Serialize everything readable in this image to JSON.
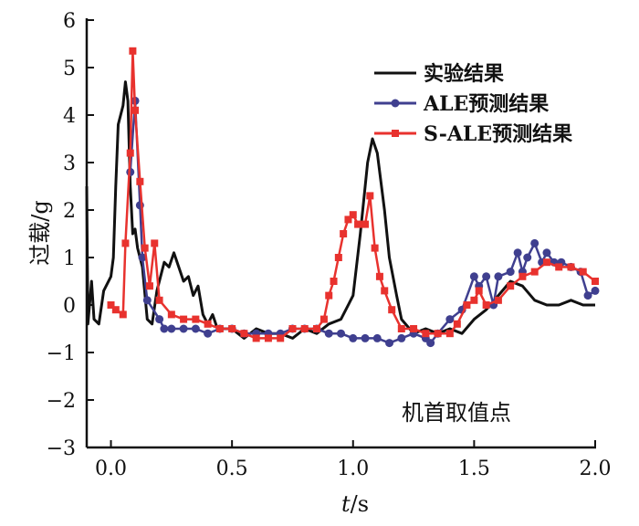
{
  "chart_data": {
    "type": "line",
    "title": "",
    "xlabel": "t/s",
    "xlabel_italic": "t",
    "xlabel_unit": "/s",
    "ylabel": "过载/g",
    "xlim": [
      -0.1,
      2.0
    ],
    "ylim": [
      -3,
      6
    ],
    "xticks": [
      0.0,
      0.5,
      1.0,
      1.5,
      2.0
    ],
    "xtick_labels": [
      "0.0",
      "0.5",
      "1.0",
      "1.5",
      "2.0"
    ],
    "yticks": [
      -3,
      -2,
      -1,
      0,
      1,
      2,
      3,
      4,
      5,
      6
    ],
    "ytick_labels": [
      "−3",
      "−2",
      "−1",
      "0",
      "1",
      "2",
      "3",
      "4",
      "5",
      "6"
    ],
    "grid": false,
    "legend_position": "top-right",
    "annotation": "机首取值点",
    "series": [
      {
        "name": "实验结果",
        "color": "#111111",
        "marker": "none",
        "x": [
          -0.1,
          -0.095,
          -0.08,
          -0.07,
          -0.05,
          -0.03,
          0,
          0.01,
          0.02,
          0.03,
          0.05,
          0.06,
          0.07,
          0.08,
          0.09,
          0.1,
          0.11,
          0.13,
          0.15,
          0.17,
          0.19,
          0.22,
          0.24,
          0.26,
          0.28,
          0.3,
          0.32,
          0.34,
          0.36,
          0.38,
          0.4,
          0.42,
          0.44,
          0.5,
          0.55,
          0.6,
          0.65,
          0.7,
          0.75,
          0.8,
          0.85,
          0.9,
          0.95,
          1.0,
          1.03,
          1.06,
          1.08,
          1.1,
          1.13,
          1.15,
          1.18,
          1.2,
          1.25,
          1.3,
          1.35,
          1.4,
          1.45,
          1.5,
          1.55,
          1.6,
          1.65,
          1.7,
          1.75,
          1.8,
          1.85,
          1.9,
          1.95,
          2.0
        ],
        "y": [
          2.5,
          -0.4,
          0.5,
          -0.3,
          -0.4,
          0.3,
          0.6,
          1.0,
          2.5,
          3.8,
          4.2,
          4.7,
          4.3,
          2.5,
          1.5,
          1.6,
          1.2,
          0.8,
          -0.3,
          -0.4,
          0.3,
          0.9,
          0.8,
          1.1,
          0.8,
          0.5,
          0.6,
          0.2,
          0.4,
          -0.2,
          -0.4,
          -0.2,
          -0.5,
          -0.5,
          -0.7,
          -0.5,
          -0.6,
          -0.6,
          -0.7,
          -0.5,
          -0.6,
          -0.4,
          -0.3,
          0.2,
          1.5,
          3.0,
          3.5,
          3.2,
          2.0,
          1.0,
          0.2,
          -0.3,
          -0.6,
          -0.5,
          -0.6,
          -0.5,
          -0.6,
          -0.3,
          -0.1,
          0.2,
          0.5,
          0.4,
          0.1,
          0.0,
          0.0,
          0.1,
          0.0,
          0.0
        ]
      },
      {
        "name": "ALE预测结果",
        "color": "#3f3f8f",
        "marker": "circle",
        "x": [
          0.08,
          0.1,
          0.12,
          0.13,
          0.15,
          0.2,
          0.22,
          0.25,
          0.3,
          0.35,
          0.4,
          0.45,
          0.5,
          0.55,
          0.6,
          0.65,
          0.7,
          0.75,
          0.8,
          0.85,
          0.9,
          0.95,
          1.0,
          1.05,
          1.1,
          1.15,
          1.2,
          1.25,
          1.3,
          1.32,
          1.35,
          1.4,
          1.45,
          1.5,
          1.52,
          1.55,
          1.58,
          1.6,
          1.65,
          1.68,
          1.7,
          1.72,
          1.75,
          1.78,
          1.8,
          1.83,
          1.86,
          1.9,
          1.94,
          1.97,
          2.0
        ],
        "y": [
          2.8,
          4.3,
          2.1,
          1.0,
          0.1,
          -0.3,
          -0.5,
          -0.5,
          -0.5,
          -0.5,
          -0.6,
          -0.5,
          -0.5,
          -0.6,
          -0.6,
          -0.6,
          -0.6,
          -0.5,
          -0.5,
          -0.5,
          -0.6,
          -0.6,
          -0.7,
          -0.7,
          -0.7,
          -0.8,
          -0.7,
          -0.6,
          -0.7,
          -0.8,
          -0.6,
          -0.3,
          -0.1,
          0.6,
          0.4,
          0.6,
          0.0,
          0.6,
          0.7,
          1.1,
          0.7,
          1.0,
          1.3,
          0.9,
          1.1,
          0.9,
          0.9,
          0.8,
          0.7,
          0.2,
          0.3
        ]
      },
      {
        "name": "S-ALE预测结果",
        "color": "#e8322e",
        "marker": "square",
        "x": [
          0.0,
          0.02,
          0.05,
          0.06,
          0.08,
          0.09,
          0.1,
          0.12,
          0.14,
          0.16,
          0.18,
          0.2,
          0.25,
          0.3,
          0.35,
          0.4,
          0.45,
          0.5,
          0.55,
          0.6,
          0.65,
          0.7,
          0.75,
          0.8,
          0.85,
          0.88,
          0.9,
          0.92,
          0.94,
          0.96,
          0.98,
          1.0,
          1.02,
          1.05,
          1.07,
          1.09,
          1.11,
          1.13,
          1.16,
          1.2,
          1.25,
          1.3,
          1.35,
          1.4,
          1.43,
          1.47,
          1.5,
          1.52,
          1.55,
          1.6,
          1.65,
          1.7,
          1.75,
          1.8,
          1.85,
          1.9,
          1.95,
          2.0
        ],
        "y": [
          0.0,
          -0.1,
          -0.2,
          1.3,
          3.2,
          5.35,
          4.1,
          2.6,
          1.2,
          0.4,
          1.3,
          0.1,
          -0.2,
          -0.3,
          -0.3,
          -0.4,
          -0.5,
          -0.5,
          -0.6,
          -0.7,
          -0.7,
          -0.7,
          -0.5,
          -0.5,
          -0.5,
          -0.3,
          0.2,
          0.5,
          1.0,
          1.5,
          1.8,
          1.9,
          1.7,
          1.7,
          2.3,
          1.2,
          0.6,
          0.3,
          -0.1,
          -0.5,
          -0.5,
          -0.6,
          -0.6,
          -0.6,
          -0.4,
          0.0,
          0.1,
          0.3,
          0.0,
          0.1,
          0.4,
          0.6,
          0.7,
          0.9,
          0.8,
          0.8,
          0.7,
          0.5
        ]
      }
    ]
  }
}
